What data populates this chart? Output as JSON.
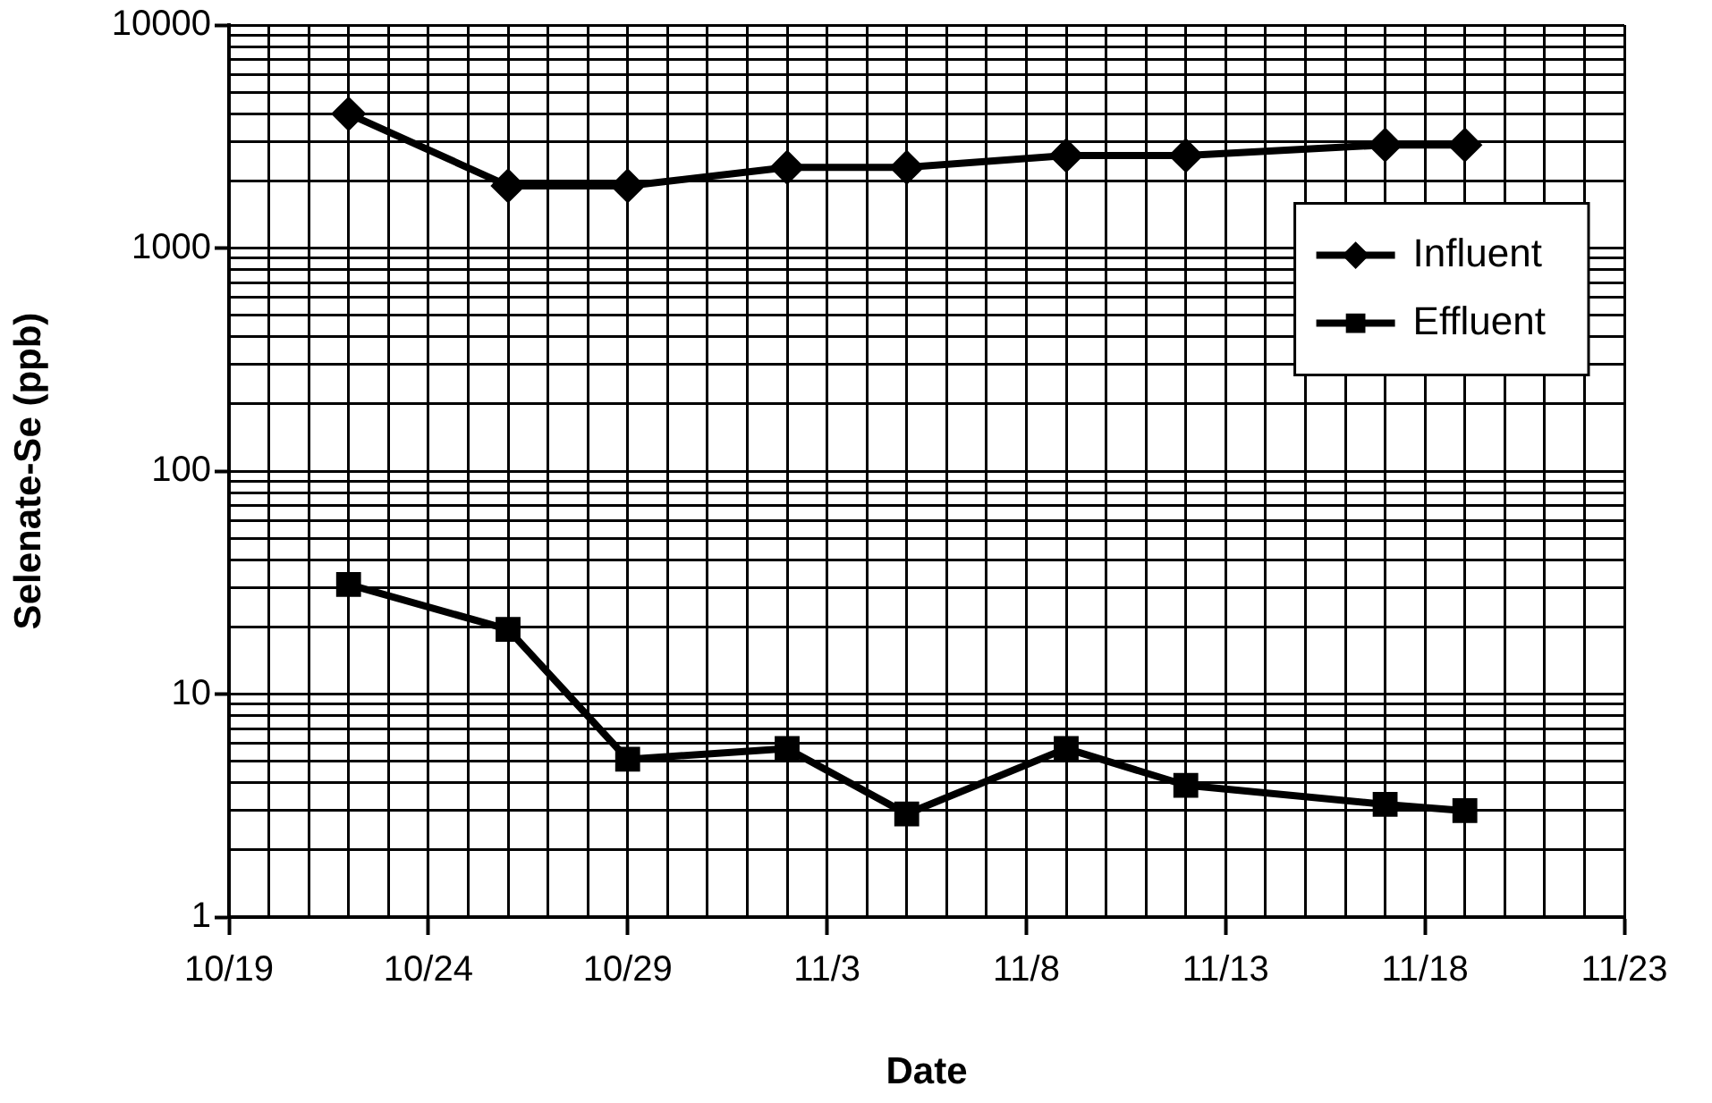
{
  "chart_data": {
    "type": "line",
    "xlabel": "Date",
    "ylabel": "Selenate-Se (ppb)",
    "xlim": [
      "--10-19",
      "--11-23"
    ],
    "xticks": [
      {
        "value": "--10-19",
        "label": "10/19"
      },
      {
        "value": "--10-20",
        "label": null
      },
      {
        "value": "--10-21",
        "label": null
      },
      {
        "value": "--10-22",
        "label": null
      },
      {
        "value": "--10-23",
        "label": null
      },
      {
        "value": "--10-24",
        "label": "10/24"
      },
      {
        "value": "--10-25",
        "label": null
      },
      {
        "value": "--10-26",
        "label": null
      },
      {
        "value": "--10-27",
        "label": null
      },
      {
        "value": "--10-28",
        "label": null
      },
      {
        "value": "--10-29",
        "label": "10/29"
      },
      {
        "value": "--10-30",
        "label": null
      },
      {
        "value": "--10-31",
        "label": null
      },
      {
        "value": "--11-01",
        "label": null
      },
      {
        "value": "--11-02",
        "label": null
      },
      {
        "value": "--11-03",
        "label": "11/3"
      },
      {
        "value": "--11-04",
        "label": null
      },
      {
        "value": "--11-05",
        "label": null
      },
      {
        "value": "--11-06",
        "label": null
      },
      {
        "value": "--11-07",
        "label": null
      },
      {
        "value": "--11-08",
        "label": "11/8"
      },
      {
        "value": "--11-09",
        "label": null
      },
      {
        "value": "--11-10",
        "label": null
      },
      {
        "value": "--11-11",
        "label": null
      },
      {
        "value": "--11-12",
        "label": null
      },
      {
        "value": "--11-13",
        "label": "11/13"
      },
      {
        "value": "--11-14",
        "label": null
      },
      {
        "value": "--11-15",
        "label": null
      },
      {
        "value": "--11-16",
        "label": null
      },
      {
        "value": "--11-17",
        "label": null
      },
      {
        "value": "--11-18",
        "label": "11/18"
      },
      {
        "value": "--11-19",
        "label": null
      },
      {
        "value": "--11-20",
        "label": null
      },
      {
        "value": "--11-21",
        "label": null
      },
      {
        "value": "--11-22",
        "label": null
      },
      {
        "value": "--11-23",
        "label": "11/23"
      }
    ],
    "ylim": [
      1,
      10000
    ],
    "log": true,
    "yticks": [
      1,
      {
        "value": 2,
        "label": null
      },
      {
        "value": 3,
        "label": null
      },
      {
        "value": 4,
        "label": null
      },
      {
        "value": 5,
        "label": null
      },
      {
        "value": 6,
        "label": null
      },
      {
        "value": 7,
        "label": null
      },
      {
        "value": 8,
        "label": null
      },
      {
        "value": 9,
        "label": null
      },
      10,
      {
        "value": 20,
        "label": null
      },
      {
        "value": 30,
        "label": null
      },
      {
        "value": 40,
        "label": null
      },
      {
        "value": 50,
        "label": null
      },
      {
        "value": 60,
        "label": null
      },
      {
        "value": 70,
        "label": null
      },
      {
        "value": 80,
        "label": null
      },
      {
        "value": 90,
        "label": null
      },
      100,
      {
        "value": 200,
        "label": null
      },
      {
        "value": 300,
        "label": null
      },
      {
        "value": 400,
        "label": null
      },
      {
        "value": 500,
        "label": null
      },
      {
        "value": 600,
        "label": null
      },
      {
        "value": 700,
        "label": null
      },
      {
        "value": 800,
        "label": null
      },
      {
        "value": 900,
        "label": null
      },
      1000,
      {
        "value": 2000,
        "label": null
      },
      {
        "value": 3000,
        "label": null
      },
      {
        "value": 4000,
        "label": null
      },
      {
        "value": 5000,
        "label": null
      },
      {
        "value": 6000,
        "label": null
      },
      {
        "value": 7000,
        "label": null
      },
      {
        "value": 8000,
        "label": null
      },
      {
        "value": 9000,
        "label": null
      },
      10000
    ],
    "x": [
      "--10-22",
      "--10-26",
      "--10-29",
      "--11-02",
      "--11-05",
      "--11-09",
      "--11-12",
      "--11-17",
      "--11-19"
    ],
    "series": [
      {
        "name": "Influent",
        "color": "#000000",
        "marker": "diamond",
        "values": [
          4000,
          1900,
          1900,
          2300,
          2300,
          2600,
          2600,
          2900,
          2900
        ]
      },
      {
        "name": "Effluent",
        "color": "#000000",
        "marker": "square",
        "values": [
          31,
          19.5,
          5.1,
          5.7,
          2.9,
          5.7,
          3.9,
          3.2,
          3.0
        ]
      }
    ],
    "grid": true,
    "legend": "right",
    "line_style": "solid"
  }
}
